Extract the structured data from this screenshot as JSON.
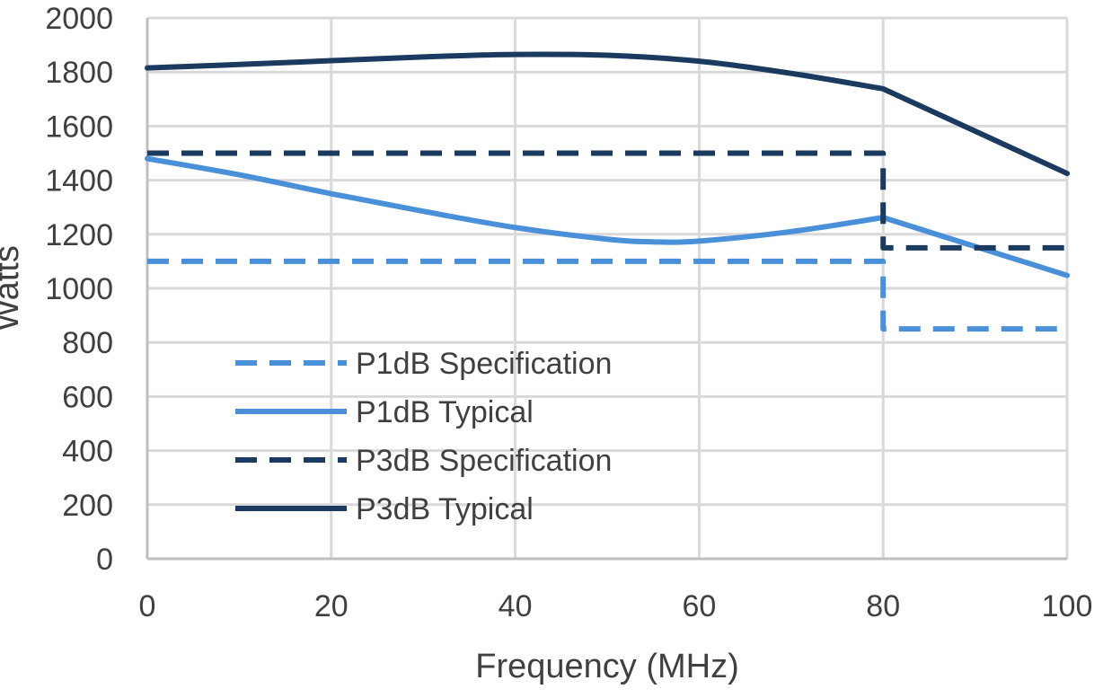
{
  "chart_data": {
    "type": "line",
    "title": "",
    "xlabel": "Frequency (MHz)",
    "ylabel": "Watts",
    "xlim": [
      0,
      100
    ],
    "ylim": [
      0,
      2000
    ],
    "x_ticks": [
      0,
      20,
      40,
      60,
      80,
      100
    ],
    "y_ticks": [
      0,
      200,
      400,
      600,
      800,
      1000,
      1200,
      1400,
      1600,
      1800,
      2000
    ],
    "grid": true,
    "legend_position": "lower-left",
    "series": [
      {
        "name": "P1dB Specification",
        "style": "dashed",
        "color": "#4A90D9",
        "points": [
          [
            0,
            1100
          ],
          [
            80,
            1100
          ],
          [
            80,
            850
          ],
          [
            100,
            850
          ]
        ]
      },
      {
        "name": "P1dB Typical",
        "style": "solid",
        "color": "#4A90D9",
        "points": [
          [
            0,
            1480
          ],
          [
            10,
            1420
          ],
          [
            20,
            1350
          ],
          [
            30,
            1285
          ],
          [
            40,
            1225
          ],
          [
            50,
            1182
          ],
          [
            55,
            1172
          ],
          [
            60,
            1175
          ],
          [
            70,
            1210
          ],
          [
            80,
            1262
          ],
          [
            90,
            1155
          ],
          [
            100,
            1048
          ]
        ]
      },
      {
        "name": "P3dB Specification",
        "style": "dashed",
        "color": "#1B3A5F",
        "points": [
          [
            0,
            1500
          ],
          [
            80,
            1500
          ],
          [
            80,
            1150
          ],
          [
            100,
            1150
          ]
        ]
      },
      {
        "name": "P3dB Typical",
        "style": "solid",
        "color": "#1B3A5F",
        "points": [
          [
            0,
            1815
          ],
          [
            10,
            1828
          ],
          [
            20,
            1842
          ],
          [
            30,
            1856
          ],
          [
            40,
            1865
          ],
          [
            50,
            1862
          ],
          [
            60,
            1840
          ],
          [
            70,
            1795
          ],
          [
            80,
            1738
          ],
          [
            90,
            1582
          ],
          [
            100,
            1425
          ]
        ]
      }
    ]
  }
}
